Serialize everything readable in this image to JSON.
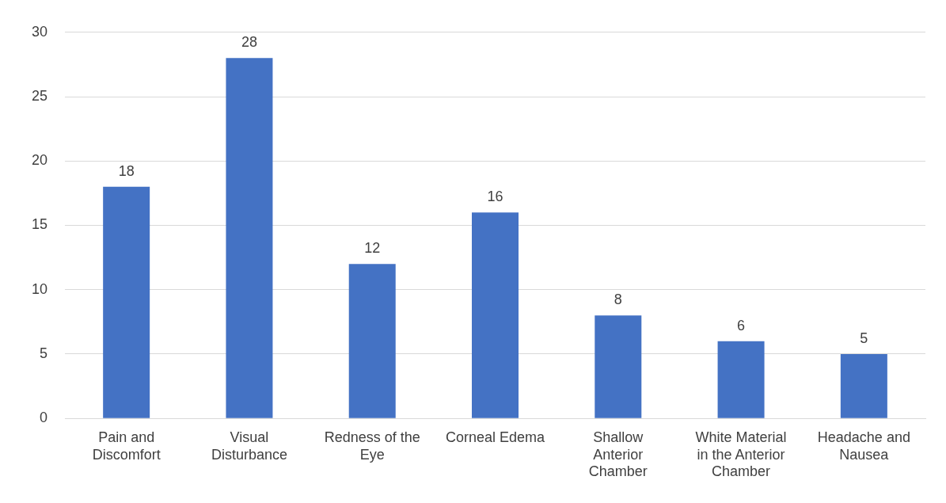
{
  "chart_data": {
    "type": "bar",
    "categories": [
      "Pain and Discomfort",
      "Visual Disturbance",
      "Redness of the Eye",
      "Corneal Edema",
      "Shallow Anterior Chamber",
      "White Material in the Anterior Chamber",
      "Headache and Nausea"
    ],
    "values": [
      18,
      28,
      12,
      16,
      8,
      6,
      5
    ],
    "color": "#4472c4",
    "ylim": [
      0,
      30
    ],
    "yticks": [
      0,
      5,
      10,
      15,
      20,
      25,
      30
    ],
    "grid": "y",
    "data_labels": true,
    "legend": false
  }
}
